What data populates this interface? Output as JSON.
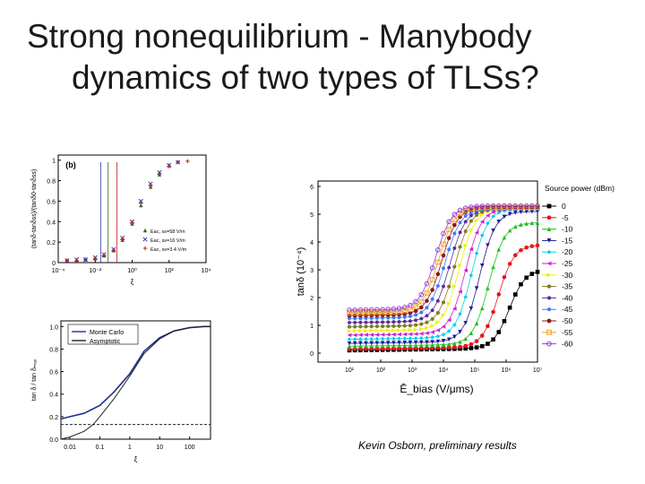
{
  "slide": {
    "title_line1": "Strong nonequilibrium - Manybody",
    "title_line2": "dynamics of two types of TLSs?",
    "credit": "Kevin Osborn, preliminary results"
  },
  "chart_data": [
    {
      "type": "scatter",
      "panel_label": "(b)",
      "ylabel": "(tanδ-tanδss)/(tanδ0-tanδss)",
      "xlabel": "ξ",
      "xscale": "log",
      "xlim": [
        0.0001,
        10000
      ],
      "ylim": [
        0,
        1.05
      ],
      "xticks": [
        "10⁻⁴",
        "10⁻²",
        "10⁰",
        "10²",
        "10⁴"
      ],
      "yticks": [
        "0",
        "0.2",
        "0.4",
        "0.6",
        "0.8",
        "1"
      ],
      "series": [
        {
          "name": "Eac, ss=58 V/m",
          "color": "#2d6b2d",
          "marker": "triangle",
          "x": [
            0.0003,
            0.001,
            0.003,
            0.01,
            0.03,
            0.1,
            0.3,
            1,
            3,
            10,
            30,
            100
          ],
          "y": [
            0.02,
            0.02,
            0.03,
            0.04,
            0.07,
            0.12,
            0.22,
            0.38,
            0.56,
            0.74,
            0.86,
            0.95
          ]
        },
        {
          "name": "Eac, ss=16 V/m",
          "color": "#3535b0",
          "marker": "x",
          "x": [
            0.0003,
            0.001,
            0.003,
            0.01,
            0.03,
            0.1,
            0.3,
            1,
            3,
            10,
            30,
            100,
            300
          ],
          "y": [
            0.02,
            0.03,
            0.03,
            0.05,
            0.08,
            0.13,
            0.24,
            0.4,
            0.6,
            0.77,
            0.88,
            0.95,
            0.98
          ]
        },
        {
          "name": "Eac, ss=3.4 V/m",
          "color": "#c02020",
          "marker": "plus",
          "x": [
            0.0003,
            0.001,
            0.003,
            0.01,
            0.03,
            0.1,
            0.3,
            1,
            3,
            10,
            30,
            100,
            300,
            1000
          ],
          "y": [
            0.02,
            0.02,
            0.03,
            0.04,
            0.07,
            0.12,
            0.23,
            0.39,
            0.58,
            0.75,
            0.87,
            0.94,
            0.98,
            0.99
          ]
        }
      ]
    },
    {
      "type": "line",
      "ylabel": "tan δ / tan δₘₐₓ",
      "xlabel": "ξ",
      "xscale": "log",
      "xlim": [
        0.005,
        500
      ],
      "ylim": [
        0,
        1.05
      ],
      "xticks": [
        "0.01",
        "0.1",
        "1",
        "10",
        "100"
      ],
      "yticks": [
        "0.0",
        "0.2",
        "0.4",
        "0.6",
        "0.8",
        "1.0"
      ],
      "series": [
        {
          "name": "Monte Carlo",
          "color": "#1f2f8f",
          "x": [
            0.005,
            0.01,
            0.03,
            0.1,
            0.3,
            1,
            3,
            10,
            30,
            100,
            300,
            500
          ],
          "y": [
            0.18,
            0.2,
            0.23,
            0.3,
            0.42,
            0.58,
            0.78,
            0.9,
            0.96,
            0.99,
            1.0,
            1.0
          ]
        },
        {
          "name": "Asymptotic",
          "color": "#222222",
          "x": [
            0.005,
            0.01,
            0.03,
            0.06,
            0.1,
            0.3,
            1,
            3,
            10,
            30,
            100,
            300,
            500
          ],
          "y": [
            0.0,
            0.02,
            0.07,
            0.13,
            0.2,
            0.36,
            0.56,
            0.76,
            0.89,
            0.96,
            0.99,
            1.0,
            1.0
          ]
        },
        {
          "name": "",
          "color": "#222222",
          "dashed": true,
          "x": [
            0.005,
            500
          ],
          "y": [
            0.13,
            0.13
          ]
        }
      ]
    },
    {
      "type": "scatter",
      "xlabel": "Ē_bias (V/μms)",
      "ylabel": "tanδ (10⁻⁴)",
      "xscale": "log",
      "xlim": [
        1,
        10000000
      ],
      "ylim": [
        0,
        6
      ],
      "xticks": [
        "10¹",
        "10²",
        "10³",
        "10⁴",
        "10⁵",
        "10⁶",
        "10⁷"
      ],
      "yticks": [
        "0",
        "1",
        "2",
        "3",
        "4",
        "5",
        "6"
      ],
      "legend_title": "Source power (dBm)",
      "series": [
        {
          "name": "0",
          "color": "#000000",
          "marker": "square",
          "plateau": 0.1,
          "sat": 3.0,
          "knee": 6.1
        },
        {
          "name": "-5",
          "color": "#e8141c",
          "marker": "circle",
          "plateau": 0.15,
          "sat": 3.9,
          "knee": 5.75
        },
        {
          "name": "-10",
          "color": "#1fbf1f",
          "marker": "triangle",
          "plateau": 0.25,
          "sat": 4.7,
          "knee": 5.45
        },
        {
          "name": "-15",
          "color": "#1a1a99",
          "marker": "tri-down",
          "plateau": 0.35,
          "sat": 5.1,
          "knee": 5.15
        },
        {
          "name": "-20",
          "color": "#00d0e8",
          "marker": "diamond",
          "plateau": 0.5,
          "sat": 5.2,
          "knee": 4.9
        },
        {
          "name": "-25",
          "color": "#d020d0",
          "marker": "tri-left",
          "plateau": 0.65,
          "sat": 5.2,
          "knee": 4.7
        },
        {
          "name": "-30",
          "color": "#f0f000",
          "marker": "tri-right",
          "plateau": 0.8,
          "sat": 5.2,
          "knee": 4.5
        },
        {
          "name": "-35",
          "color": "#7d7d20",
          "marker": "hexagon",
          "plateau": 0.95,
          "sat": 5.2,
          "knee": 4.35
        },
        {
          "name": "-40",
          "color": "#5a2a99",
          "marker": "star",
          "plateau": 1.1,
          "sat": 5.2,
          "knee": 4.2
        },
        {
          "name": "-45",
          "color": "#3a7aff",
          "marker": "pentagon",
          "plateau": 1.25,
          "sat": 5.2,
          "knee": 4.05
        },
        {
          "name": "-50",
          "color": "#8a1a1a",
          "marker": "circle",
          "plateau": 1.35,
          "sat": 5.25,
          "knee": 3.95
        },
        {
          "name": "-55",
          "color": "#f0a020",
          "marker": "square-open",
          "plateau": 1.45,
          "sat": 5.25,
          "knee": 3.85
        },
        {
          "name": "-60",
          "color": "#9a40d0",
          "marker": "circle-open",
          "plateau": 1.55,
          "sat": 5.3,
          "knee": 3.75
        }
      ]
    }
  ]
}
